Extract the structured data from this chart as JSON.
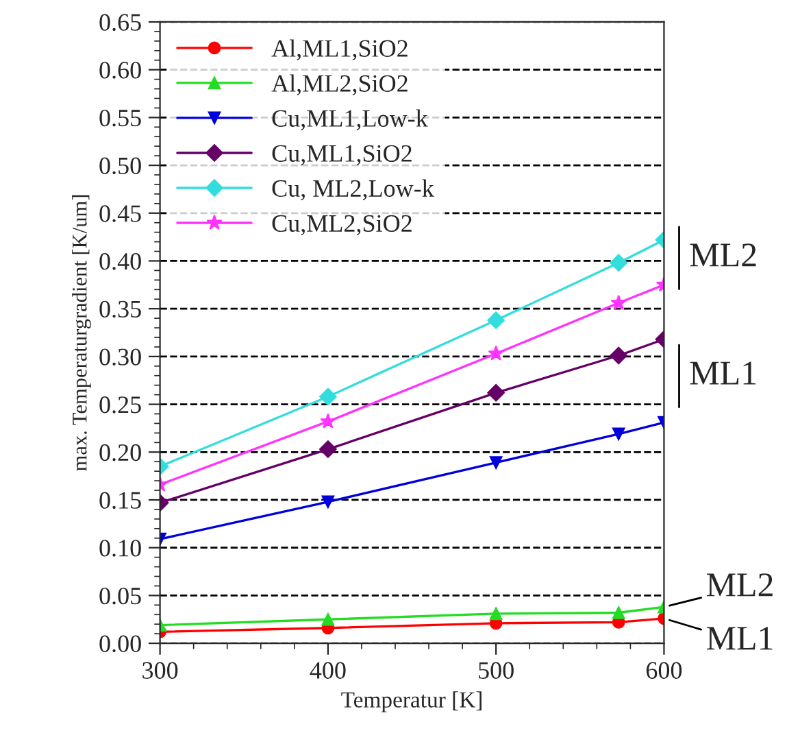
{
  "chart_data": {
    "type": "line",
    "xlabel": "Temperatur [K]",
    "ylabel": "max. Temperaturgradient [K/um]",
    "x": [
      300,
      400,
      500,
      573,
      600
    ],
    "series": [
      {
        "name": "Al,ML1,SiO2",
        "color": "#ff0000",
        "marker": "circle",
        "values": [
          0.012,
          0.016,
          0.021,
          0.022,
          0.026
        ]
      },
      {
        "name": "Al,ML2,SiO2",
        "color": "#22dd22",
        "marker": "triangle",
        "values": [
          0.019,
          0.025,
          0.031,
          0.032,
          0.038
        ]
      },
      {
        "name": "Cu,ML1,Low-k",
        "color": "#0000dd",
        "marker": "triangle_down",
        "values": [
          0.109,
          0.148,
          0.189,
          0.219,
          0.231
        ]
      },
      {
        "name": "Cu,ML1,SiO2",
        "color": "#660066",
        "marker": "diamond",
        "values": [
          0.147,
          0.203,
          0.262,
          0.301,
          0.318
        ]
      },
      {
        "name": "Cu, ML2,Low-k",
        "color": "#33dddd",
        "marker": "diamond",
        "values": [
          0.185,
          0.258,
          0.338,
          0.398,
          0.422
        ]
      },
      {
        "name": "Cu,ML2,SiO2",
        "color": "#ff33ff",
        "marker": "star",
        "values": [
          0.166,
          0.232,
          0.303,
          0.356,
          0.375
        ]
      }
    ],
    "xlim": [
      300,
      600
    ],
    "xticks": [
      300,
      400,
      500,
      600
    ],
    "ylim": [
      0,
      0.65
    ],
    "yticks": [
      {
        "value": 0,
        "label": "0.00"
      },
      {
        "value": 0.05,
        "label": "0.05"
      },
      {
        "value": 0.1,
        "label": "0.10"
      },
      {
        "value": 0.15,
        "label": "0.15"
      },
      {
        "value": 0.2,
        "label": "0.20"
      },
      {
        "value": 0.25,
        "label": "0.25"
      },
      {
        "value": 0.3,
        "label": "0.30"
      },
      {
        "value": 0.35,
        "label": "0.35"
      },
      {
        "value": 0.4,
        "label": "0.40"
      },
      {
        "value": 0.45,
        "label": "0.45"
      },
      {
        "value": 0.5,
        "label": "0.50"
      },
      {
        "value": 0.55,
        "label": "0.55"
      },
      {
        "value": 0.6,
        "label": "0.60"
      },
      {
        "value": 0.65,
        "label": "0.65"
      }
    ],
    "grid": "y",
    "legend": "top left",
    "line_style": "solid",
    "annotations": [
      "ML2",
      "ML1",
      {
        "text": "ML2",
        "x": 600,
        "y": 0.038
      },
      {
        "text": "ML1",
        "x": 600,
        "y": 0.026
      }
    ]
  }
}
